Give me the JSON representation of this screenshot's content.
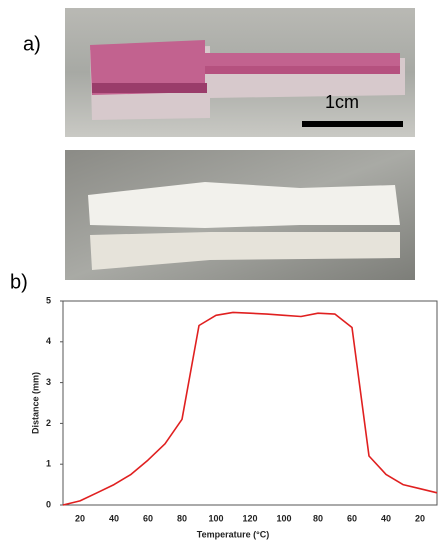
{
  "panel_a": {
    "label": "a)",
    "scale_bar": "1cm"
  },
  "panel_b": {
    "label": "b)"
  },
  "chart_data": {
    "type": "line",
    "x_label": "Temperature (°C)",
    "y_label": "Distance (mm)",
    "categories": [
      null,
      "20",
      null,
      "40",
      null,
      "60",
      null,
      "80",
      null,
      "100",
      null,
      "120",
      null,
      "100",
      null,
      "80",
      null,
      "60",
      null,
      "40",
      null,
      "20",
      null
    ],
    "series": [
      {
        "color": "#e02020",
        "values": [
          0,
          0.1,
          0.3,
          0.5,
          0.75,
          1.1,
          1.5,
          2.1,
          4.4,
          4.65,
          4.72,
          4.7,
          4.68,
          4.65,
          4.62,
          4.7,
          4.68,
          4.35,
          1.2,
          0.75,
          0.5,
          0.4,
          0.3
        ]
      }
    ],
    "ylim": [
      0,
      5
    ],
    "yticks": [
      0,
      1,
      2,
      3,
      4,
      5
    ]
  }
}
